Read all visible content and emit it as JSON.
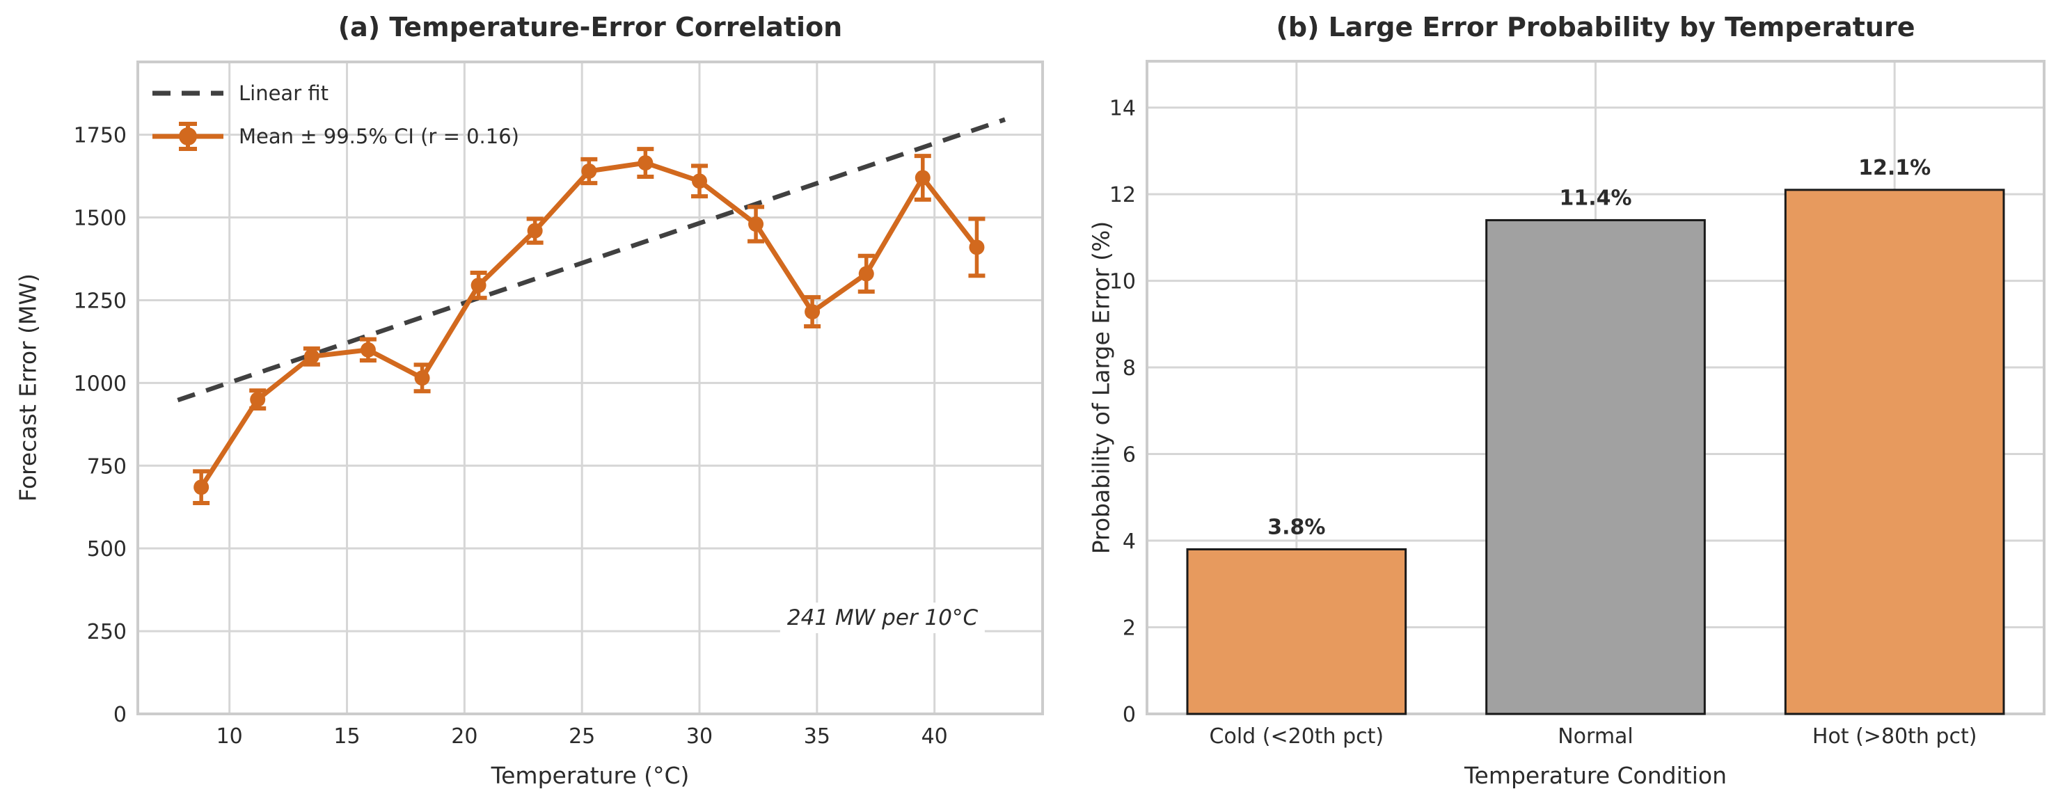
{
  "figure": {
    "panel_a": {
      "title": "(a) Temperature-Error Correlation",
      "xlabel": "Temperature (°C)",
      "ylabel": "Forecast Error (MW)",
      "legend": {
        "linear_fit_label": "Linear fit",
        "mean_ci_label": "Mean ± 99.5% CI (r = 0.16)"
      },
      "annotation": "241 MW per 10°C"
    },
    "panel_b": {
      "title": "(b) Large Error Probability by Temperature",
      "xlabel": "Temperature Condition",
      "ylabel": "Probability of Large Error (%)"
    }
  },
  "colors": {
    "line_orange": "#d2691e",
    "bar_orange": "#e79a5e",
    "bar_gray": "#a1a1a1",
    "bar_edge": "#1a1a1a",
    "fit_dash": "#404040",
    "grid": "#d6d6d6",
    "frame": "#cccccc",
    "text": "#2b2b2b"
  },
  "chart_data": [
    {
      "type": "line",
      "title": "(a) Temperature-Error Correlation",
      "xlabel": "Temperature (°C)",
      "ylabel": "Forecast Error (MW)",
      "x": [
        8.8,
        11.2,
        13.5,
        15.9,
        18.2,
        20.6,
        23.0,
        25.3,
        27.7,
        30.0,
        32.4,
        34.8,
        37.1,
        39.5,
        41.8
      ],
      "y": [
        685,
        950,
        1080,
        1100,
        1015,
        1295,
        1460,
        1640,
        1665,
        1610,
        1480,
        1215,
        1330,
        1620,
        1410
      ],
      "ci_half_width": [
        48,
        27,
        24,
        32,
        40,
        38,
        36,
        36,
        42,
        46,
        52,
        44,
        54,
        66,
        86
      ],
      "series_name": "Mean ± 99.5% CI (r = 0.16)",
      "fit_line": {
        "name": "Linear fit",
        "x": [
          7.8,
          43.0
        ],
        "y": [
          948,
          1796
        ],
        "slope_note": "241 MW per 10°C",
        "r": 0.16
      },
      "xticks": [
        10,
        15,
        20,
        25,
        30,
        35,
        40
      ],
      "yticks": [
        0,
        250,
        500,
        750,
        1000,
        1250,
        1500,
        1750
      ],
      "xlim": [
        6.1,
        44.6
      ],
      "ylim": [
        0,
        1970
      ],
      "grid": true,
      "legend_position": "upper left",
      "annotation": "241 MW per 10°C"
    },
    {
      "type": "bar",
      "title": "(b) Large Error Probability by Temperature",
      "xlabel": "Temperature Condition",
      "ylabel": "Probability of Large Error (%)",
      "categories": [
        "Cold (<20th pct)",
        "Normal",
        "Hot (>80th pct)"
      ],
      "values": [
        3.8,
        11.4,
        12.1
      ],
      "value_labels": [
        "3.8%",
        "11.4%",
        "12.1%"
      ],
      "bar_colors": [
        "#e79a5e",
        "#a1a1a1",
        "#e79a5e"
      ],
      "yticks": [
        0,
        2,
        4,
        6,
        8,
        10,
        12,
        14
      ],
      "ylim": [
        0,
        15.07
      ],
      "grid": true
    }
  ]
}
